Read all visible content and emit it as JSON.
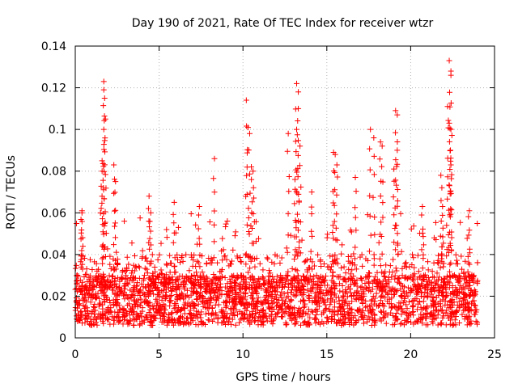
{
  "chart_data": {
    "type": "scatter",
    "title": "Day 190 of 2021, Rate Of TEC Index for receiver wtzr",
    "xlabel": "GPS time / hours",
    "ylabel": "ROTI / TECUs",
    "xlim": [
      0,
      25
    ],
    "ylim": [
      0,
      0.14
    ],
    "xticks": [
      0,
      5,
      10,
      15,
      20,
      25
    ],
    "yticks": [
      0,
      0.02,
      0.04,
      0.06,
      0.08,
      0.1,
      0.12,
      0.14
    ],
    "xtick_labels": [
      "0",
      "5",
      "10",
      "15",
      "20",
      "25"
    ],
    "ytick_labels": [
      "0",
      "0.02",
      "0.04",
      "0.06",
      "0.08",
      "0.1",
      "0.12",
      "0.14"
    ],
    "grid": true,
    "marker": "+",
    "color": "#ff0000",
    "data_coverage_hours": [
      0,
      24
    ],
    "series": [
      {
        "name": "ROTI",
        "points": [
          [
            1.7,
            0.123
          ],
          [
            1.7,
            0.119
          ],
          [
            1.75,
            0.115
          ],
          [
            1.8,
            0.105
          ],
          [
            1.7,
            0.1
          ],
          [
            1.6,
            0.08
          ],
          [
            1.6,
            0.085
          ],
          [
            2.3,
            0.083
          ],
          [
            2.4,
            0.075
          ],
          [
            0.4,
            0.061
          ],
          [
            0.4,
            0.06
          ],
          [
            4.4,
            0.068
          ],
          [
            4.5,
            0.06
          ],
          [
            5.9,
            0.065
          ],
          [
            7.4,
            0.063
          ],
          [
            8.3,
            0.086
          ],
          [
            10.2,
            0.114
          ],
          [
            10.3,
            0.101
          ],
          [
            10.4,
            0.098
          ],
          [
            10.5,
            0.082
          ],
          [
            10.6,
            0.08
          ],
          [
            12.7,
            0.098
          ],
          [
            13.2,
            0.122
          ],
          [
            13.3,
            0.118
          ],
          [
            13.3,
            0.11
          ],
          [
            13.2,
            0.1
          ],
          [
            13.4,
            0.092
          ],
          [
            13.1,
            0.076
          ],
          [
            15.4,
            0.089
          ],
          [
            15.5,
            0.088
          ],
          [
            15.6,
            0.083
          ],
          [
            16.7,
            0.077
          ],
          [
            17.6,
            0.1
          ],
          [
            17.8,
            0.096
          ],
          [
            18.2,
            0.094
          ],
          [
            18.3,
            0.092
          ],
          [
            19.1,
            0.109
          ],
          [
            19.2,
            0.107
          ],
          [
            19.0,
            0.081
          ],
          [
            19.2,
            0.09
          ],
          [
            21.9,
            0.063
          ],
          [
            22.3,
            0.133
          ],
          [
            22.4,
            0.128
          ],
          [
            22.4,
            0.126
          ],
          [
            22.2,
            0.111
          ],
          [
            22.3,
            0.103
          ],
          [
            22.4,
            0.1
          ],
          [
            22.4,
            0.083
          ],
          [
            21.8,
            0.078
          ],
          [
            23.5,
            0.061
          ],
          [
            20.7,
            0.063
          ],
          [
            14.1,
            0.07
          ]
        ]
      }
    ]
  }
}
